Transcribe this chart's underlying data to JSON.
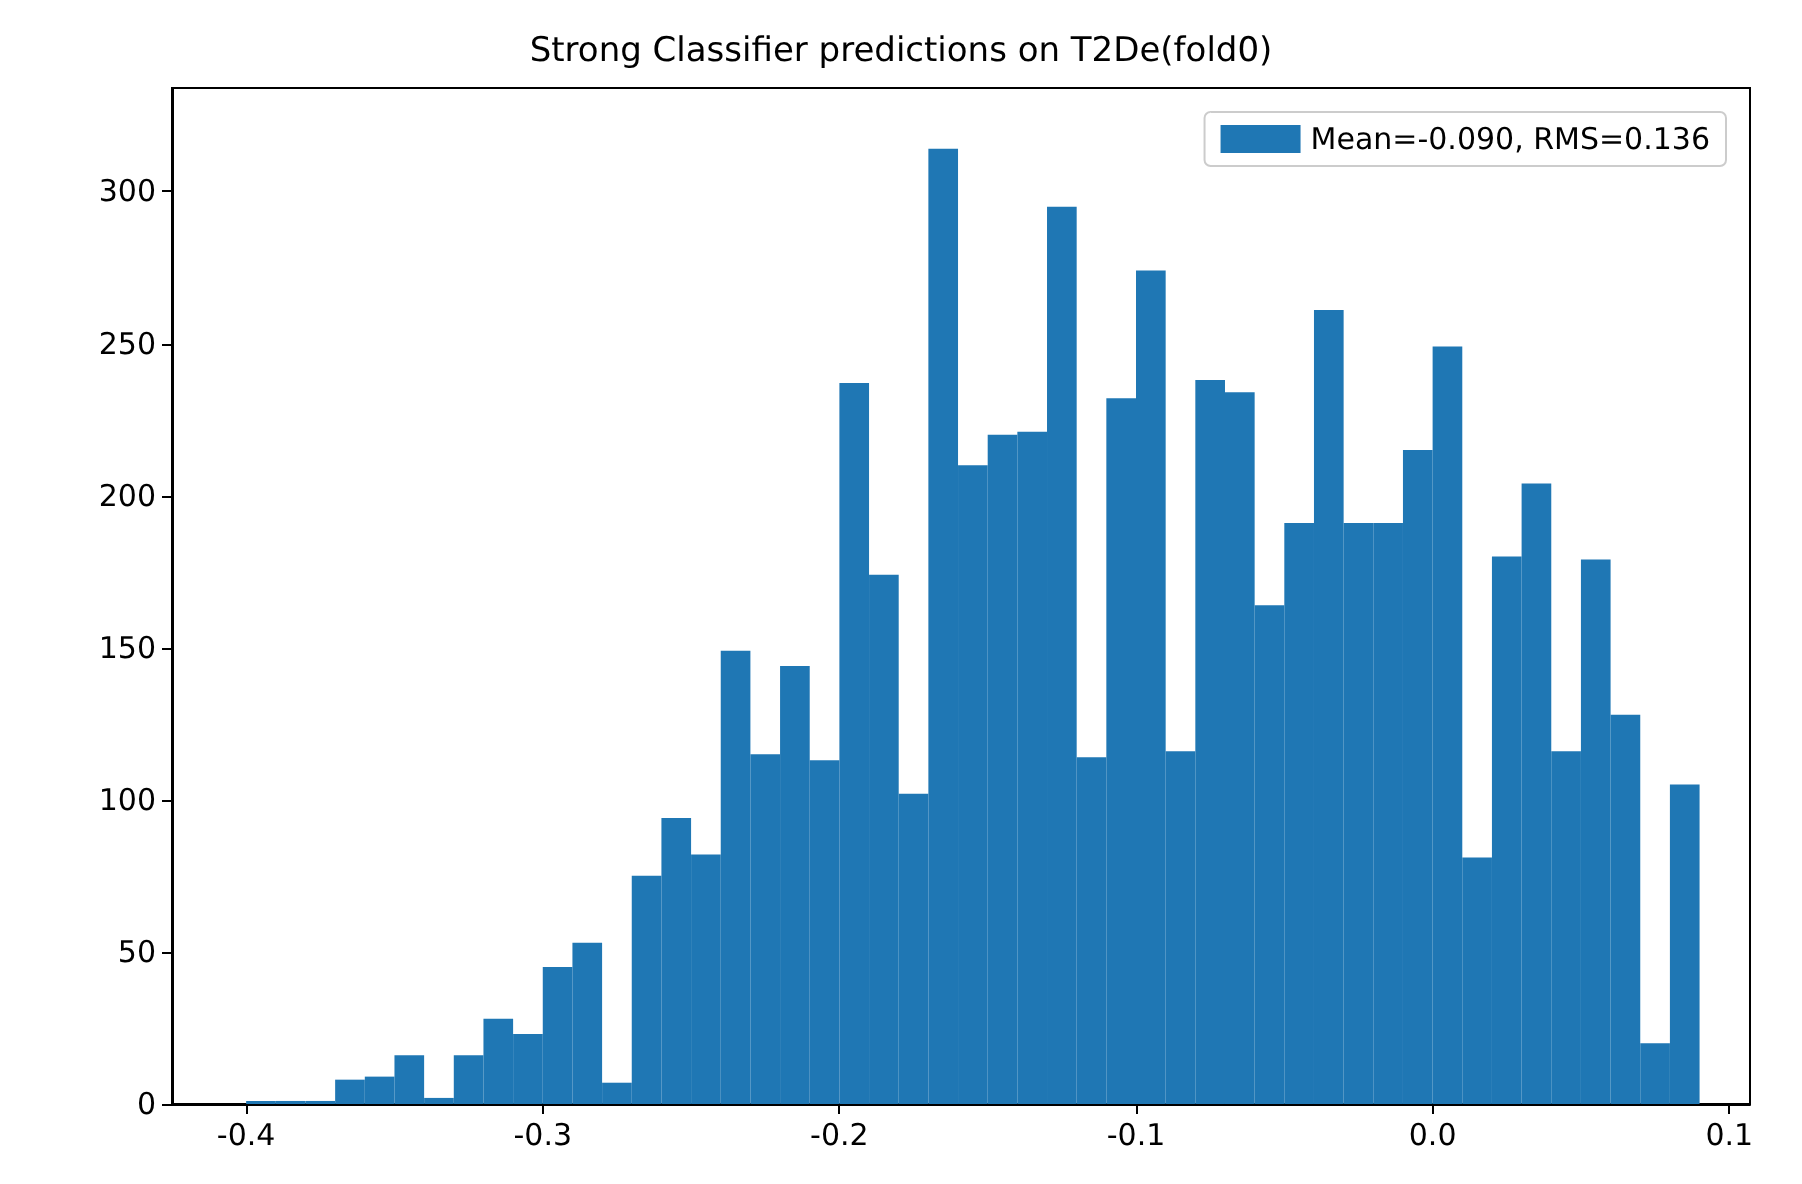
{
  "chart_data": {
    "type": "histogram",
    "title": "Strong Classifier predictions on T2De(fold0)",
    "bins": [
      -0.4,
      -0.39,
      -0.38,
      -0.37,
      -0.36,
      -0.35,
      -0.34,
      -0.33,
      -0.32,
      -0.31,
      -0.3,
      -0.29,
      -0.28,
      -0.27,
      -0.26,
      -0.25,
      -0.24,
      -0.23,
      -0.22,
      -0.21,
      -0.2,
      -0.19,
      -0.18,
      -0.17,
      -0.16,
      -0.15,
      -0.14,
      -0.13,
      -0.12,
      -0.11,
      -0.1,
      -0.09,
      -0.08,
      -0.07,
      -0.06,
      -0.05,
      -0.04,
      -0.03,
      -0.02,
      -0.01,
      0.0,
      0.01,
      0.02,
      0.03,
      0.04,
      0.05,
      0.06,
      0.07,
      0.08,
      0.09
    ],
    "series": [
      {
        "name": "Mean=-0.090, RMS=0.136",
        "color": "#1f77b4",
        "values": [
          1,
          1,
          1,
          8,
          9,
          16,
          2,
          16,
          28,
          23,
          45,
          53,
          7,
          75,
          94,
          82,
          149,
          115,
          144,
          113,
          237,
          174,
          102,
          314,
          210,
          220,
          221,
          295,
          114,
          232,
          274,
          116,
          238,
          234,
          164,
          191,
          261,
          191,
          191,
          215,
          249,
          81,
          180,
          204,
          116,
          179,
          128,
          20,
          105
        ]
      }
    ],
    "xlim": [
      -0.425,
      0.107
    ],
    "xticks": [
      -0.4,
      -0.3,
      -0.2,
      -0.1,
      {
        "value": 0,
        "label": "0.0"
      },
      0.1
    ],
    "ylim": [
      0,
      334
    ],
    "yticks": [
      0,
      50,
      100,
      150,
      200,
      250,
      300
    ],
    "legend": "top right",
    "grid": false
  }
}
